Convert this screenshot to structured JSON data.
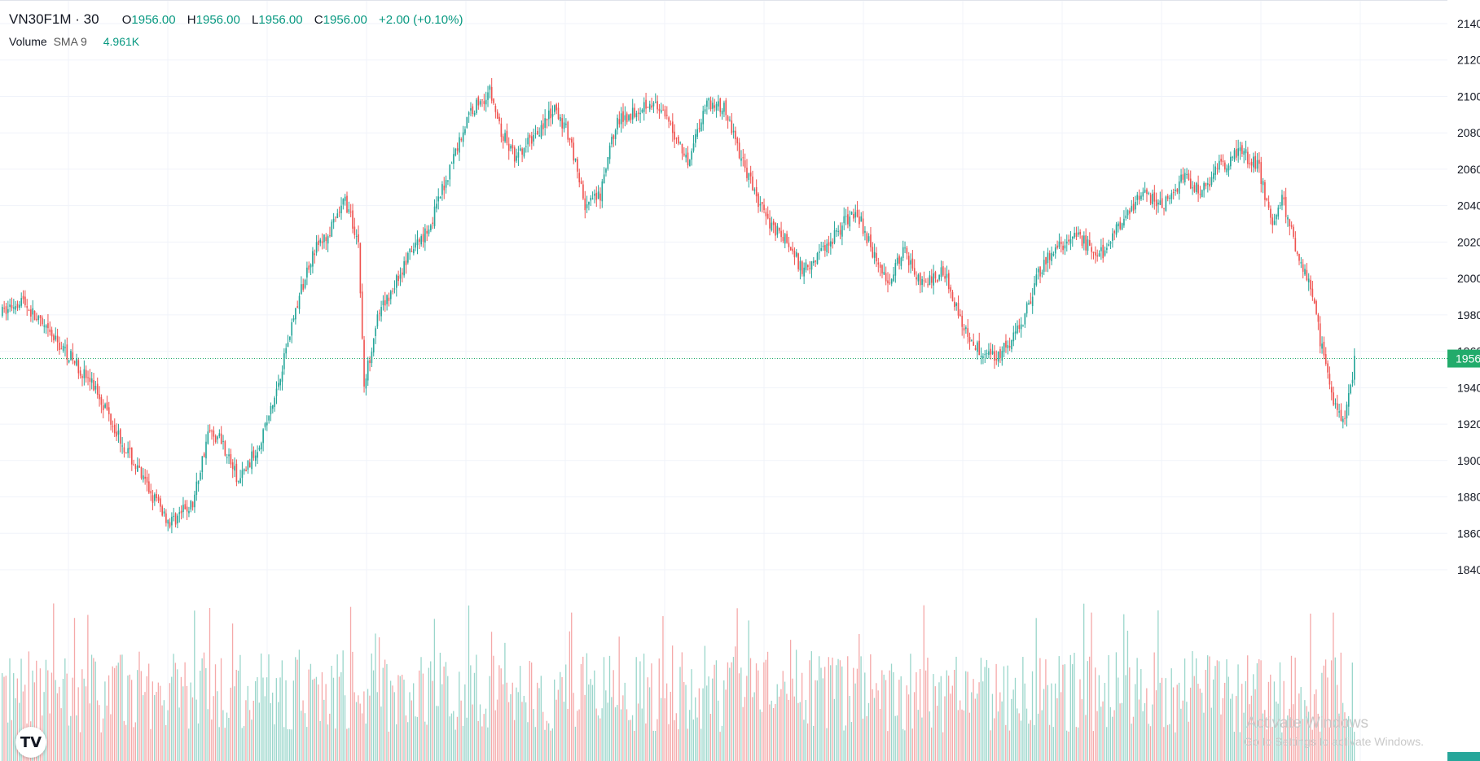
{
  "legend": {
    "symbol": "VN30F1M · 30",
    "open_key": "O",
    "open": "1956.00",
    "high_key": "H",
    "high": "1956.00",
    "low_key": "L",
    "low": "1956.00",
    "close_key": "C",
    "close": "1956.00",
    "change": "+2.00 (+0.10%)"
  },
  "volume_legend": {
    "label": "Volume",
    "sma": "SMA 9",
    "value": "4.961K"
  },
  "price_badge": {
    "value": "1956"
  },
  "watermark": {
    "line1": "Activate Windows",
    "line2": "Go to Settings to activate Windows."
  },
  "logo": {
    "text": "TV"
  },
  "colors": {
    "up": "#26a69a",
    "down": "#ef5350",
    "vol_up": "#9ad6cb",
    "vol_down": "#f5a9a9",
    "badge": "#22ab6b",
    "grid": "#f0f3fa"
  },
  "chart_data": {
    "type": "candlestick",
    "title": "VN30F1M · 30",
    "ylim": [
      1830,
      2145
    ],
    "y_ticks": [
      1840,
      1860,
      1880,
      1900,
      1920,
      1940,
      1960,
      1980,
      2000,
      2020,
      2040,
      2060,
      2080,
      2100,
      2120,
      2140
    ],
    "last_price": 1956,
    "grid": true,
    "trend_path": [
      [
        0,
        1981
      ],
      [
        10,
        1989
      ],
      [
        22,
        1972
      ],
      [
        35,
        1958
      ],
      [
        50,
        1938
      ],
      [
        62,
        1912
      ],
      [
        75,
        1887
      ],
      [
        88,
        1866
      ],
      [
        100,
        1876
      ],
      [
        108,
        1915
      ],
      [
        115,
        1912
      ],
      [
        124,
        1888
      ],
      [
        133,
        1905
      ],
      [
        142,
        1930
      ],
      [
        152,
        1975
      ],
      [
        163,
        2015
      ],
      [
        172,
        2025
      ],
      [
        180,
        2043
      ],
      [
        187,
        2020
      ],
      [
        190,
        1940
      ],
      [
        196,
        1975
      ],
      [
        205,
        1995
      ],
      [
        215,
        2015
      ],
      [
        225,
        2030
      ],
      [
        238,
        2070
      ],
      [
        246,
        2092
      ],
      [
        256,
        2103
      ],
      [
        262,
        2080
      ],
      [
        270,
        2065
      ],
      [
        280,
        2080
      ],
      [
        290,
        2092
      ],
      [
        298,
        2078
      ],
      [
        306,
        2040
      ],
      [
        314,
        2045
      ],
      [
        322,
        2085
      ],
      [
        332,
        2092
      ],
      [
        340,
        2098
      ],
      [
        350,
        2085
      ],
      [
        360,
        2065
      ],
      [
        370,
        2098
      ],
      [
        380,
        2092
      ],
      [
        390,
        2060
      ],
      [
        400,
        2035
      ],
      [
        412,
        2020
      ],
      [
        420,
        2005
      ],
      [
        430,
        2015
      ],
      [
        440,
        2028
      ],
      [
        448,
        2038
      ],
      [
        456,
        2018
      ],
      [
        464,
        1998
      ],
      [
        474,
        2015
      ],
      [
        484,
        1995
      ],
      [
        494,
        2005
      ],
      [
        502,
        1982
      ],
      [
        505,
        1972
      ],
      [
        512,
        1962
      ],
      [
        520,
        1958
      ],
      [
        528,
        1962
      ],
      [
        535,
        1975
      ],
      [
        545,
        2005
      ],
      [
        555,
        2018
      ],
      [
        565,
        2023
      ],
      [
        575,
        2012
      ],
      [
        580,
        2015
      ],
      [
        590,
        2038
      ],
      [
        600,
        2045
      ],
      [
        610,
        2040
      ],
      [
        620,
        2055
      ],
      [
        630,
        2048
      ],
      [
        640,
        2062
      ],
      [
        650,
        2070
      ],
      [
        660,
        2060
      ],
      [
        666,
        2030
      ],
      [
        672,
        2045
      ],
      [
        680,
        2015
      ],
      [
        688,
        1990
      ],
      [
        694,
        1955
      ],
      [
        700,
        1930
      ],
      [
        705,
        1920
      ],
      [
        710,
        1955
      ]
    ],
    "visible_range": {
      "start": 0,
      "end": 710
    }
  }
}
